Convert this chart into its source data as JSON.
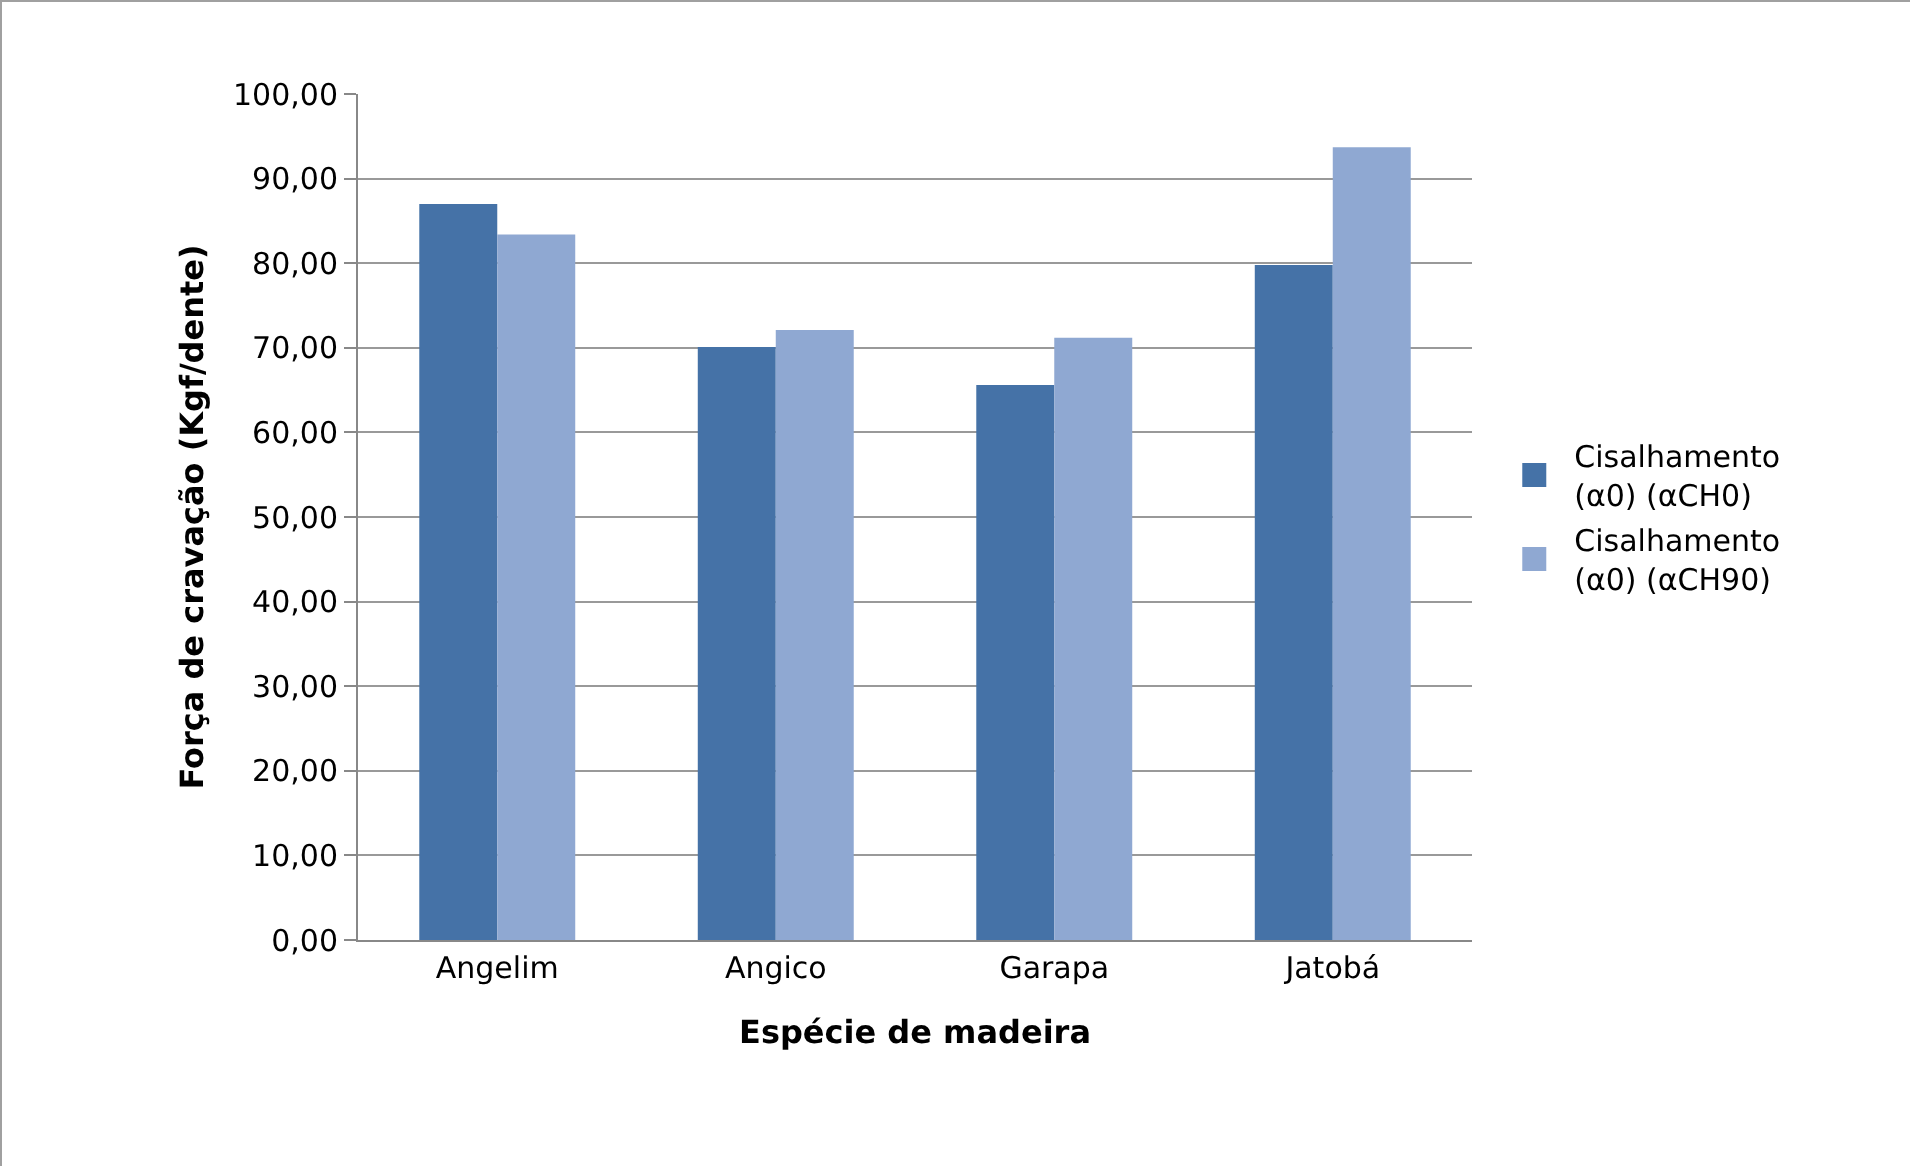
{
  "chart_data": {
    "type": "bar",
    "xlabel": "Espécie de madeira",
    "ylabel": "Força de cravação (Kgf/dente)",
    "categories": [
      "Angelim",
      "Angico",
      "Garapa",
      "Jatobá"
    ],
    "series": [
      {
        "name": "Cisalhamento (α0) (αCH0)",
        "color": "#4572a7",
        "values": [
          87.0,
          70.1,
          65.6,
          79.8
        ]
      },
      {
        "name": "Cisalhamento (α0) (αCH90)",
        "color": "#8fa8d2",
        "values": [
          83.4,
          72.1,
          71.2,
          93.7
        ]
      }
    ],
    "ylim": [
      0,
      100
    ],
    "yticks": [
      {
        "value": 0,
        "label": "0,00"
      },
      {
        "value": 10,
        "label": "10,00"
      },
      {
        "value": 20,
        "label": "20,00"
      },
      {
        "value": 30,
        "label": "30,00"
      },
      {
        "value": 40,
        "label": "40,00"
      },
      {
        "value": 50,
        "label": "50,00"
      },
      {
        "value": 60,
        "label": "60,00"
      },
      {
        "value": 70,
        "label": "70,00"
      },
      {
        "value": 80,
        "label": "80,00"
      },
      {
        "value": 90,
        "label": "90,00"
      },
      {
        "value": 100,
        "label": "100,00"
      }
    ],
    "grid": "y",
    "legend": "right"
  }
}
